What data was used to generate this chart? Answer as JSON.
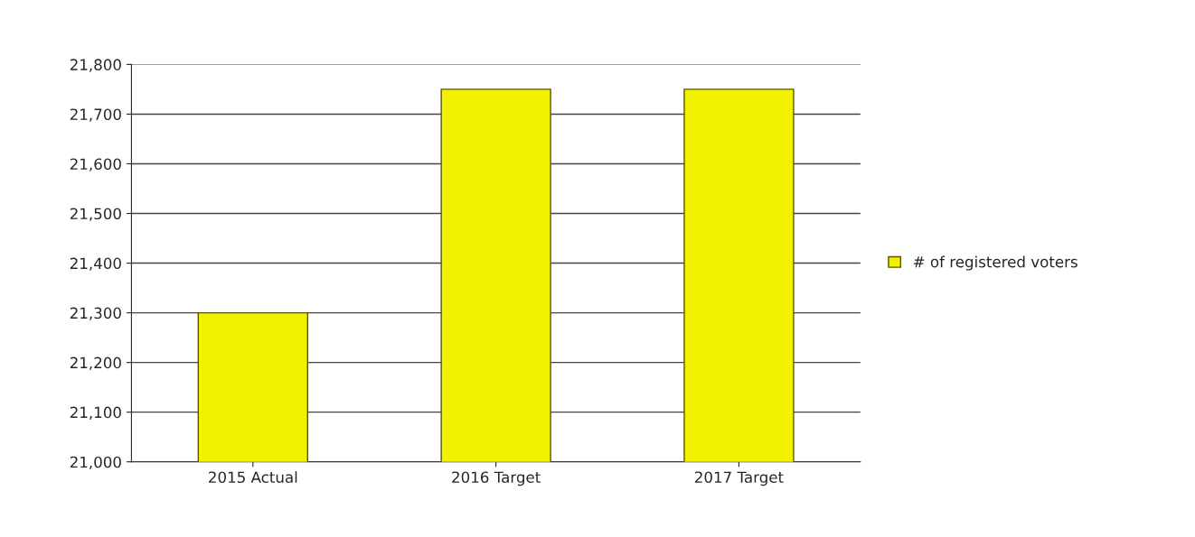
{
  "chart_data": {
    "type": "bar",
    "categories": [
      "2015 Actual",
      "2016 Target",
      "2017 Target"
    ],
    "series": [
      {
        "name": "# of registered voters",
        "color": "#f2f200",
        "values": [
          21300,
          21750,
          21750
        ]
      }
    ],
    "ylim": [
      21000,
      21800
    ],
    "yticks": [
      {
        "value": 21000,
        "label": "21,000"
      },
      {
        "value": 21100,
        "label": "21,100"
      },
      {
        "value": 21200,
        "label": "21,200"
      },
      {
        "value": 21300,
        "label": "21,300"
      },
      {
        "value": 21400,
        "label": "21,400"
      },
      {
        "value": 21500,
        "label": "21,500"
      },
      {
        "value": 21600,
        "label": "21,600"
      },
      {
        "value": 21700,
        "label": "21,700"
      },
      {
        "value": 21800,
        "label": "21,800"
      }
    ],
    "grid": "y",
    "legend": "right"
  }
}
